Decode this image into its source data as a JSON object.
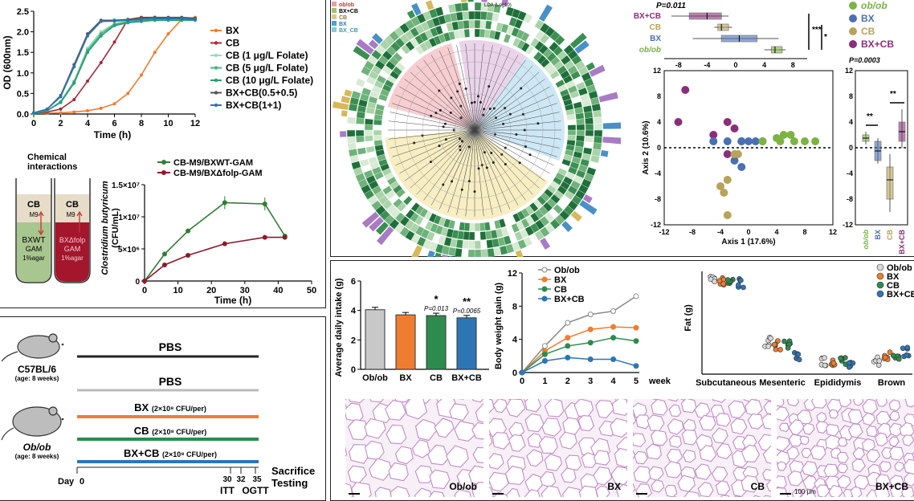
{
  "chart_data": [
    {
      "id": "growth",
      "type": "line",
      "xlabel": "Time (h)",
      "ylabel": "OD (600nm)",
      "xlim": [
        0,
        12
      ],
      "ylim": [
        0,
        2.5
      ],
      "xticks": [
        "0",
        "2",
        "4",
        "6",
        "8",
        "10",
        "12"
      ],
      "yticks": [
        "0.0",
        "0.5",
        "1.0",
        "1.5",
        "2.0",
        "2.5"
      ],
      "x": [
        0,
        1,
        2,
        3,
        4,
        5,
        6,
        7,
        8,
        9,
        10,
        11,
        12
      ],
      "series": [
        {
          "name": "BX",
          "color": "#ee7d31",
          "values": [
            0.02,
            0.02,
            0.03,
            0.05,
            0.08,
            0.14,
            0.25,
            0.5,
            0.95,
            1.5,
            1.95,
            2.3,
            2.35
          ]
        },
        {
          "name": "CB",
          "color": "#a52a3a",
          "values": [
            0.02,
            0.05,
            0.12,
            0.35,
            0.8,
            1.25,
            1.75,
            2.3,
            2.35,
            2.35,
            2.3,
            2.3,
            2.32
          ]
        },
        {
          "name": "CB (1 μg/L Folate)",
          "color": "#9fd8b6",
          "values": [
            0.02,
            0.08,
            0.3,
            0.8,
            1.6,
            2.0,
            2.2,
            2.25,
            2.28,
            2.3,
            2.3,
            2.3,
            2.3
          ]
        },
        {
          "name": "CB (5 μg/L Folate)",
          "color": "#45b486",
          "values": [
            0.02,
            0.08,
            0.3,
            0.78,
            1.55,
            1.95,
            2.18,
            2.25,
            2.27,
            2.3,
            2.3,
            2.3,
            2.3
          ]
        },
        {
          "name": "CB (10 μg/L Folate)",
          "color": "#2a9d77",
          "values": [
            0.02,
            0.08,
            0.28,
            0.75,
            1.5,
            1.9,
            2.15,
            2.22,
            2.25,
            2.28,
            2.28,
            2.28,
            2.28
          ]
        },
        {
          "name": "BX+CB(0.5+0.5)",
          "color": "#555555",
          "values": [
            0.03,
            0.12,
            0.45,
            1.2,
            1.95,
            2.28,
            2.28,
            2.3,
            2.33,
            2.35,
            2.35,
            2.35,
            2.33
          ]
        },
        {
          "name": "BX+CB(1+1)",
          "color": "#2e75b6",
          "values": [
            0.03,
            0.12,
            0.42,
            1.15,
            1.9,
            2.25,
            2.26,
            2.28,
            2.3,
            2.32,
            2.32,
            2.32,
            2.3
          ]
        }
      ]
    },
    {
      "id": "clostridium",
      "type": "line",
      "xlabel": "Time (h)",
      "ylabel_line1": "Clostridium butyricum",
      "ylabel_line2": "(CFU/mL)",
      "xlim": [
        0,
        50
      ],
      "ylim": [
        0,
        15000000
      ],
      "xticks": [
        "0",
        "10",
        "20",
        "30",
        "40",
        "50"
      ],
      "yticks": [
        "0",
        "5×10⁶",
        "1×10⁷",
        "1.5×10⁷"
      ],
      "series": [
        {
          "name": "CB-M9/BXWT-GAM",
          "color": "#2e7d32",
          "x": [
            0,
            6,
            13,
            24,
            36,
            42
          ],
          "values": [
            0,
            4200000,
            7800000,
            12200000,
            12000000,
            7000000
          ]
        },
        {
          "name": "CB-M9/BXΔfolp-GAM",
          "color": "#8b1a2b",
          "x": [
            0,
            6,
            13,
            24,
            36,
            42
          ],
          "values": [
            0,
            2500000,
            4000000,
            5800000,
            6800000,
            6800000
          ]
        }
      ]
    },
    {
      "id": "intake",
      "type": "bar",
      "ylabel": "Average daily intake (g)",
      "ylim": [
        0,
        6
      ],
      "yticks": [
        "0",
        "2",
        "4",
        "6"
      ],
      "categories": [
        "Ob/ob",
        "BX",
        "CB",
        "BX+CB"
      ],
      "values": [
        4.05,
        3.7,
        3.65,
        3.5
      ],
      "colors": [
        "#c8c8c8",
        "#ee7d31",
        "#2e8b4e",
        "#2e75b6"
      ],
      "annotations": [
        "",
        "",
        "*",
        "**"
      ],
      "pvalues": [
        "",
        "",
        "P=0.013",
        "P=0.0065"
      ]
    },
    {
      "id": "weight",
      "type": "line",
      "ylabel": "Body weight gain (g)",
      "xlabel_suffix": "week",
      "ylim": [
        0,
        12
      ],
      "yticks": [
        "0",
        "4",
        "8",
        "12"
      ],
      "x": [
        0,
        1,
        2,
        3,
        4,
        5
      ],
      "series": [
        {
          "name": "Ob/ob",
          "color": "#888888",
          "values": [
            0,
            3.2,
            6.0,
            7.0,
            7.4,
            9.2
          ]
        },
        {
          "name": "BX",
          "color": "#ee7d31",
          "values": [
            0,
            2.6,
            4.2,
            5.2,
            5.5,
            5.4
          ]
        },
        {
          "name": "CB",
          "color": "#2e8b4e",
          "values": [
            0,
            2.2,
            3.2,
            3.6,
            4.2,
            3.8
          ]
        },
        {
          "name": "BX+CB",
          "color": "#2e75b6",
          "values": [
            0,
            1.4,
            1.8,
            1.6,
            1.6,
            0.8
          ]
        }
      ]
    },
    {
      "id": "fat",
      "type": "scatter",
      "ylabel": "Fat (g)",
      "categories": [
        "Subcutaneous",
        "Mesenteric",
        "Epididymis",
        "Brown"
      ],
      "legend": [
        "Ob/ob",
        "BX",
        "CB",
        "BX+CB"
      ],
      "colors": [
        "#d9d9d9",
        "#ee7d31",
        "#2e8b4e",
        "#2e75b6"
      ]
    }
  ],
  "top_right": {
    "box_pvalue": "P=0.011",
    "box_groups": [
      "BX+CB",
      "CB",
      "BX",
      "ob/ob"
    ],
    "legend": [
      "ob/ob",
      "BX",
      "CB",
      "BX+CB"
    ],
    "legend_colors": [
      "#7cb342",
      "#4a6fb5",
      "#b9a25a",
      "#8b2e7a"
    ],
    "axis1_label": "Axis 1 (17.6%)",
    "axis2_label": "Axis 2 (10.6%)",
    "xticks": [
      "-12",
      "-8",
      "-4",
      "0",
      "4",
      "8",
      "12"
    ],
    "yticks": [
      "12",
      "8",
      "4",
      "0",
      "-4",
      "-8",
      "-12"
    ],
    "side_pvalue": "P=0.0003",
    "sig_a": "***",
    "sig_b": "*",
    "sig_c": "**",
    "sig_d": "**",
    "side_cats": [
      "ob/ob",
      "BX",
      "CB",
      "BX+CB"
    ],
    "box_xticks": [
      "-8",
      "-4",
      "0",
      "4",
      "8"
    ]
  },
  "tree_legend": {
    "title": "LDA (Log10)",
    "items": [
      "ob/ob",
      "BX+CB",
      "CB",
      "BX",
      "BX_CB"
    ]
  },
  "chem": {
    "title_line1": "Chemical",
    "title_line2": "interactions",
    "tube1_top": "CB",
    "tube1_m9": "M9",
    "tube1_bot1": "BXWT",
    "tube1_bot2": "GAM",
    "tube1_bot3": "1%agar",
    "tube2_top": "CB",
    "tube2_m9": "M9",
    "tube2_bot1": "BXΔfolp",
    "tube2_bot2": "GAM",
    "tube2_bot3": "1%agar"
  },
  "timeline": {
    "mouse1_name": "C57BL/6",
    "mouse1_age": "(age: 8 weeks)",
    "mouse2_name": "Ob/ob",
    "mouse2_age": "(age: 8 weeks)",
    "pbs1": "PBS",
    "pbs2": "PBS",
    "bx": "BX",
    "bx_dose": "(2×10⁸ CFU/per)",
    "cb": "CB",
    "cb_dose": "(2×10⁸ CFU/per)",
    "bxcb": "BX+CB",
    "bxcb_dose": "(2×10⁸ CFU/per)",
    "day_label": "Day",
    "day0": "0",
    "day30": "30",
    "day32": "32",
    "day35": "35",
    "sacrifice": "Sacrifice",
    "testing": "Testing",
    "itt": "ITT",
    "ogtt": "OGTT"
  },
  "histology": {
    "labels": [
      "Ob/ob",
      "BX",
      "CB",
      "BX+CB"
    ],
    "scale": "100 μm"
  }
}
